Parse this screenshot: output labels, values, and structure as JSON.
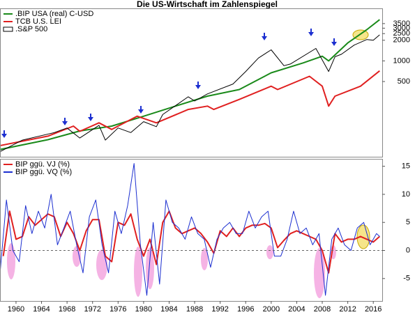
{
  "chart_data": [
    {
      "type": "line",
      "title": "Die US-Wirtschaft im Zahlenspiegel",
      "log_scale": true,
      "xlim": [
        1957.6,
        2017.4
      ],
      "ylim": [
        40,
        5700
      ],
      "yticks": [
        500,
        1000,
        2000,
        2500,
        3000,
        3500
      ],
      "series": [
        {
          "name": ".BIP USA (real) C-USD",
          "color": "#1a8a1a",
          "x": [
            1957,
            1965,
            1970,
            1975,
            1980,
            1985,
            1990,
            1995,
            2000,
            2005,
            2008,
            2009,
            2012,
            2015,
            2017
          ],
          "values": [
            50,
            71,
            95,
            112,
            156,
            219,
            306,
            382,
            670,
            935,
            1170,
            1000,
            1830,
            2860,
            3990
          ]
        },
        {
          "name": "TCB U.S. LEI",
          "color": "#e02020",
          "x": [
            1957,
            1965,
            1969,
            1970,
            1973,
            1975,
            1979,
            1982,
            1987,
            1990,
            1991,
            1995,
            2000,
            2001,
            2006,
            2008,
            2009,
            2010,
            2014,
            2017
          ],
          "values": [
            57,
            80,
            112,
            94,
            125,
            100,
            156,
            125,
            196,
            219,
            196,
            274,
            428,
            382,
            596,
            428,
            219,
            306,
            428,
            715
          ]
        },
        {
          "name": ".S&P 500",
          "color": "#000000",
          "x": [
            1957,
            1961,
            1966,
            1968,
            1970,
            1973,
            1974,
            1976,
            1978,
            1980,
            1982,
            1983,
            1987,
            1988,
            1990,
            1994,
            1996,
            1998,
            2000,
            2002,
            2003,
            2007,
            2009,
            2010,
            2011,
            2013,
            2015,
            2016,
            2017
          ],
          "values": [
            45,
            70,
            90,
            105,
            75,
            115,
            70,
            105,
            90,
            130,
            110,
            165,
            300,
            260,
            330,
            460,
            700,
            1100,
            1450,
            850,
            900,
            1520,
            700,
            1150,
            1250,
            1700,
            2050,
            2000,
            2400
          ]
        }
      ]
    },
    {
      "type": "line",
      "xlim": [
        1957.6,
        2017.4
      ],
      "ylim": [
        -9,
        16.2
      ],
      "xticks": [
        1960,
        1964,
        1968,
        1972,
        1976,
        1980,
        1984,
        1988,
        1992,
        1996,
        2000,
        2004,
        2008,
        2012,
        2016
      ],
      "yticks": [
        -5,
        0,
        5,
        10,
        15
      ],
      "zero_line": true,
      "series": [
        {
          "name": "BIP ggü. VJ (%)",
          "color": "#e02020",
          "x": [
            1958,
            1959,
            1960,
            1961,
            1962,
            1963,
            1964,
            1965,
            1966,
            1967,
            1968,
            1969,
            1970,
            1971,
            1972,
            1973,
            1974,
            1975,
            1976,
            1977,
            1978,
            1979,
            1980,
            1981,
            1982,
            1983,
            1984,
            1985,
            1986,
            1987,
            1988,
            1989,
            1990,
            1991,
            1992,
            1993,
            1994,
            1995,
            1996,
            1997,
            1998,
            1999,
            2000,
            2001,
            2002,
            2003,
            2004,
            2005,
            2006,
            2007,
            2008,
            2009,
            2010,
            2011,
            2012,
            2013,
            2014,
            2015,
            2016,
            2017
          ],
          "values": [
            -1,
            7,
            2,
            2.5,
            6,
            4.5,
            5.5,
            6.5,
            6,
            2.5,
            5,
            3,
            0,
            3.5,
            5.5,
            5.5,
            -1,
            -2,
            5,
            4.5,
            6.5,
            2,
            -1,
            2,
            -2.5,
            5,
            7,
            4,
            3,
            3.5,
            4,
            3,
            1.5,
            -0.5,
            3.5,
            2.5,
            4,
            2.5,
            4,
            4.5,
            4.5,
            4.8,
            4,
            0.5,
            1.8,
            3,
            3.5,
            3,
            2.5,
            2,
            0,
            -4,
            3,
            1.5,
            2,
            2,
            2.5,
            2,
            1.5,
            2.5
          ]
        },
        {
          "name": "BIP ggü. VQ (%)",
          "color": "#1c2fd0",
          "x": [
            1957.5,
            1958.5,
            1959.5,
            1960.5,
            1961.5,
            1962.5,
            1963.5,
            1964.5,
            1965.5,
            1966.5,
            1967.5,
            1968.5,
            1969.5,
            1970.5,
            1971.5,
            1972.5,
            1973.5,
            1974.5,
            1975.5,
            1976.5,
            1977.5,
            1978.5,
            1979.5,
            1980.5,
            1981.5,
            1982.5,
            1983.5,
            1984.5,
            1985.5,
            1986.5,
            1987.5,
            1988.5,
            1989.5,
            1990.5,
            1991.5,
            1992.5,
            1993.5,
            1994.5,
            1995.5,
            1996.5,
            1997.5,
            1998.5,
            1999.5,
            2000.5,
            2001.5,
            2002.5,
            2003.5,
            2004.5,
            2005.5,
            2006.5,
            2007.5,
            2008.5,
            2009.5,
            2010.5,
            2011.5,
            2012.5,
            2013.5,
            2014.5,
            2015.5,
            2016.5,
            2017
          ],
          "values": [
            -4,
            9,
            0,
            -2,
            8,
            3,
            7,
            4,
            10,
            1,
            4,
            7,
            1,
            -4,
            6,
            9,
            1,
            -4,
            7,
            3,
            8,
            15.5,
            1,
            -8,
            5,
            -6,
            9,
            5,
            4,
            2,
            6,
            3,
            2,
            -3,
            2,
            4,
            5,
            3,
            3,
            7,
            4,
            6,
            7,
            -1,
            -1,
            2,
            7,
            3,
            4,
            1,
            3,
            -8,
            2,
            4,
            1,
            0,
            4,
            5,
            1,
            3,
            2.5
          ]
        }
      ]
    }
  ]
}
